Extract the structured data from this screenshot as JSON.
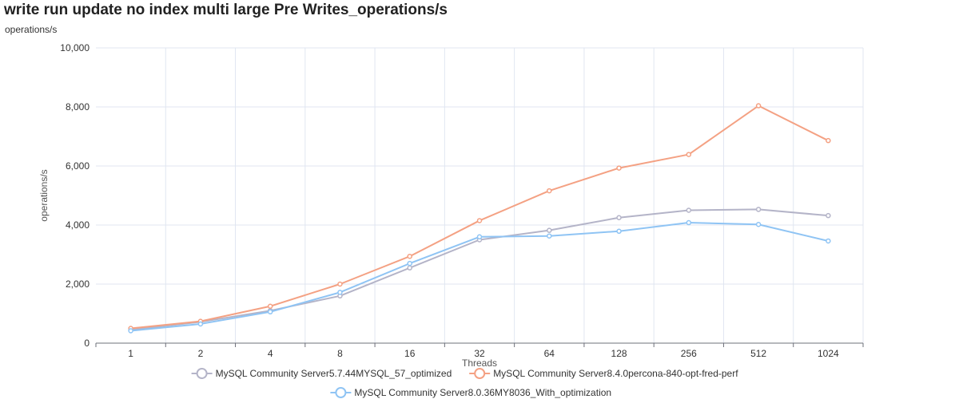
{
  "page": {
    "title": "write run update no index multi large Pre Writes_operations/s",
    "unit_label": "operations/s"
  },
  "chart_data": {
    "type": "line",
    "title": "write run update no index multi large Pre Writes_operations/s",
    "xlabel": "Threads",
    "ylabel": "operations/s",
    "categories": [
      "1",
      "2",
      "4",
      "8",
      "16",
      "32",
      "64",
      "128",
      "256",
      "512",
      "1024"
    ],
    "ylim": [
      0,
      10000
    ],
    "yticks": [
      0,
      2000,
      4000,
      6000,
      8000,
      10000
    ],
    "ytick_labels": [
      "0",
      "2,000",
      "4,000",
      "6,000",
      "8,000",
      "10,000"
    ],
    "grid": true,
    "legend_position": "bottom",
    "series": [
      {
        "name": "MySQL Community Server5.7.44MYSQL_57_optimized",
        "color": "#b4b4c8",
        "values": [
          450,
          720,
          1100,
          1600,
          2550,
          3500,
          3820,
          4250,
          4500,
          4530,
          4320
        ]
      },
      {
        "name": "MySQL Community Server8.4.0percona-840-opt-fred-perf",
        "color": "#f4a183",
        "values": [
          500,
          740,
          1250,
          2000,
          2940,
          4150,
          5160,
          5930,
          6390,
          8040,
          6860
        ]
      },
      {
        "name": "MySQL Community Server8.0.36MY8036_With_optimization",
        "color": "#8fc4f4",
        "values": [
          420,
          650,
          1060,
          1720,
          2700,
          3600,
          3630,
          3790,
          4080,
          4020,
          3460
        ]
      }
    ]
  }
}
